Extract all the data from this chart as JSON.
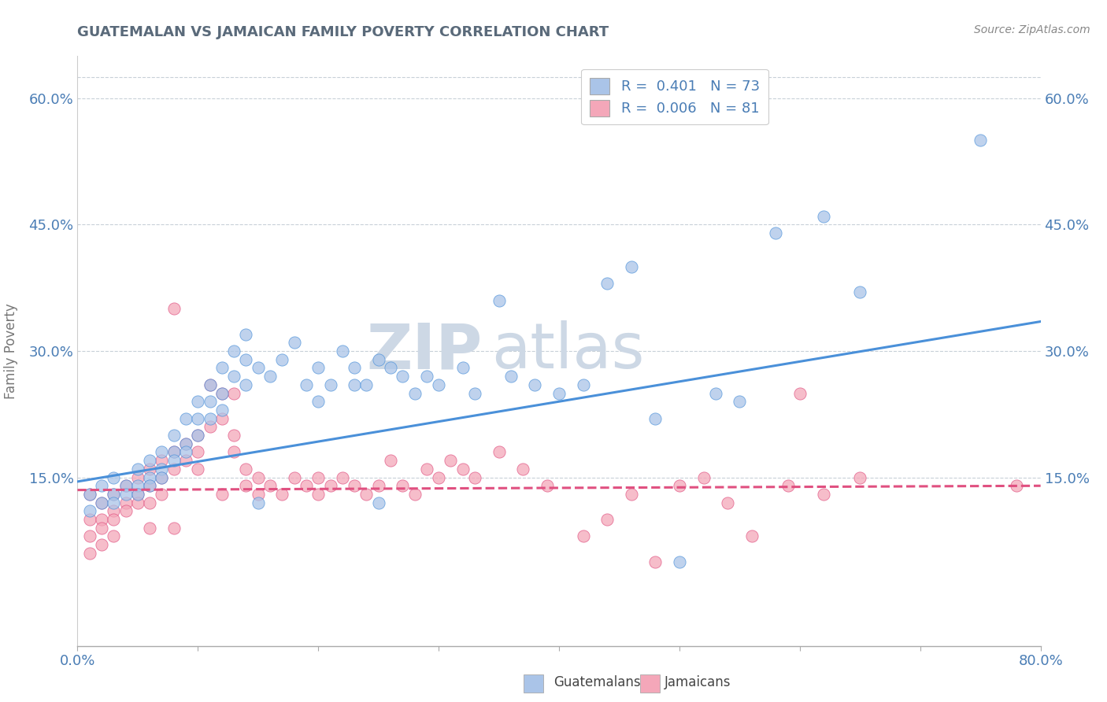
{
  "title": "GUATEMALAN VS JAMAICAN FAMILY POVERTY CORRELATION CHART",
  "source": "Source: ZipAtlas.com",
  "ylabel": "Family Poverty",
  "xmin": 0.0,
  "xmax": 0.8,
  "ymin": -0.05,
  "ymax": 0.65,
  "yticks": [
    0.0,
    0.15,
    0.3,
    0.45,
    0.6
  ],
  "ytick_labels": [
    "",
    "15.0%",
    "30.0%",
    "45.0%",
    "60.0%"
  ],
  "right_ytick_labels": [
    "",
    "15.0%",
    "30.0%",
    "45.0%",
    "60.0%"
  ],
  "guatemalan_color": "#aac4e8",
  "jamaican_color": "#f4a7b9",
  "guatemalan_line_color": "#4a90d9",
  "jamaican_line_color": "#e05080",
  "background_color": "#ffffff",
  "watermark_zip": "ZIP",
  "watermark_atlas": "atlas",
  "watermark_color": "#d0dce8",
  "guatemalans_scatter": [
    [
      0.01,
      0.13
    ],
    [
      0.01,
      0.11
    ],
    [
      0.02,
      0.14
    ],
    [
      0.02,
      0.12
    ],
    [
      0.03,
      0.15
    ],
    [
      0.03,
      0.13
    ],
    [
      0.03,
      0.12
    ],
    [
      0.04,
      0.14
    ],
    [
      0.04,
      0.13
    ],
    [
      0.05,
      0.16
    ],
    [
      0.05,
      0.14
    ],
    [
      0.05,
      0.13
    ],
    [
      0.06,
      0.15
    ],
    [
      0.06,
      0.17
    ],
    [
      0.06,
      0.14
    ],
    [
      0.07,
      0.16
    ],
    [
      0.07,
      0.18
    ],
    [
      0.07,
      0.15
    ],
    [
      0.08,
      0.2
    ],
    [
      0.08,
      0.18
    ],
    [
      0.08,
      0.17
    ],
    [
      0.09,
      0.22
    ],
    [
      0.09,
      0.19
    ],
    [
      0.09,
      0.18
    ],
    [
      0.1,
      0.24
    ],
    [
      0.1,
      0.22
    ],
    [
      0.1,
      0.2
    ],
    [
      0.11,
      0.26
    ],
    [
      0.11,
      0.24
    ],
    [
      0.11,
      0.22
    ],
    [
      0.12,
      0.28
    ],
    [
      0.12,
      0.25
    ],
    [
      0.12,
      0.23
    ],
    [
      0.13,
      0.3
    ],
    [
      0.13,
      0.27
    ],
    [
      0.14,
      0.32
    ],
    [
      0.14,
      0.29
    ],
    [
      0.14,
      0.26
    ],
    [
      0.15,
      0.28
    ],
    [
      0.15,
      0.12
    ],
    [
      0.16,
      0.27
    ],
    [
      0.17,
      0.29
    ],
    [
      0.18,
      0.31
    ],
    [
      0.19,
      0.26
    ],
    [
      0.2,
      0.24
    ],
    [
      0.2,
      0.28
    ],
    [
      0.21,
      0.26
    ],
    [
      0.22,
      0.3
    ],
    [
      0.23,
      0.28
    ],
    [
      0.23,
      0.26
    ],
    [
      0.24,
      0.26
    ],
    [
      0.25,
      0.12
    ],
    [
      0.25,
      0.29
    ],
    [
      0.26,
      0.28
    ],
    [
      0.27,
      0.27
    ],
    [
      0.28,
      0.25
    ],
    [
      0.29,
      0.27
    ],
    [
      0.3,
      0.26
    ],
    [
      0.32,
      0.28
    ],
    [
      0.33,
      0.25
    ],
    [
      0.35,
      0.36
    ],
    [
      0.36,
      0.27
    ],
    [
      0.38,
      0.26
    ],
    [
      0.4,
      0.25
    ],
    [
      0.42,
      0.26
    ],
    [
      0.44,
      0.38
    ],
    [
      0.46,
      0.4
    ],
    [
      0.48,
      0.22
    ],
    [
      0.5,
      0.05
    ],
    [
      0.53,
      0.25
    ],
    [
      0.55,
      0.24
    ],
    [
      0.58,
      0.44
    ],
    [
      0.62,
      0.46
    ],
    [
      0.65,
      0.37
    ],
    [
      0.75,
      0.55
    ]
  ],
  "jamaicans_scatter": [
    [
      0.01,
      0.13
    ],
    [
      0.01,
      0.1
    ],
    [
      0.01,
      0.08
    ],
    [
      0.01,
      0.06
    ],
    [
      0.02,
      0.12
    ],
    [
      0.02,
      0.1
    ],
    [
      0.02,
      0.09
    ],
    [
      0.02,
      0.07
    ],
    [
      0.03,
      0.13
    ],
    [
      0.03,
      0.11
    ],
    [
      0.03,
      0.1
    ],
    [
      0.03,
      0.08
    ],
    [
      0.04,
      0.14
    ],
    [
      0.04,
      0.12
    ],
    [
      0.04,
      0.11
    ],
    [
      0.05,
      0.15
    ],
    [
      0.05,
      0.13
    ],
    [
      0.05,
      0.12
    ],
    [
      0.06,
      0.16
    ],
    [
      0.06,
      0.14
    ],
    [
      0.06,
      0.12
    ],
    [
      0.06,
      0.09
    ],
    [
      0.07,
      0.17
    ],
    [
      0.07,
      0.15
    ],
    [
      0.07,
      0.13
    ],
    [
      0.08,
      0.35
    ],
    [
      0.08,
      0.18
    ],
    [
      0.08,
      0.16
    ],
    [
      0.08,
      0.09
    ],
    [
      0.09,
      0.19
    ],
    [
      0.09,
      0.17
    ],
    [
      0.1,
      0.2
    ],
    [
      0.1,
      0.18
    ],
    [
      0.1,
      0.16
    ],
    [
      0.11,
      0.26
    ],
    [
      0.11,
      0.21
    ],
    [
      0.12,
      0.25
    ],
    [
      0.12,
      0.22
    ],
    [
      0.12,
      0.13
    ],
    [
      0.13,
      0.25
    ],
    [
      0.13,
      0.2
    ],
    [
      0.13,
      0.18
    ],
    [
      0.14,
      0.16
    ],
    [
      0.14,
      0.14
    ],
    [
      0.15,
      0.15
    ],
    [
      0.15,
      0.13
    ],
    [
      0.16,
      0.14
    ],
    [
      0.17,
      0.13
    ],
    [
      0.18,
      0.15
    ],
    [
      0.19,
      0.14
    ],
    [
      0.2,
      0.15
    ],
    [
      0.2,
      0.13
    ],
    [
      0.21,
      0.14
    ],
    [
      0.22,
      0.15
    ],
    [
      0.23,
      0.14
    ],
    [
      0.24,
      0.13
    ],
    [
      0.25,
      0.14
    ],
    [
      0.26,
      0.17
    ],
    [
      0.27,
      0.14
    ],
    [
      0.28,
      0.13
    ],
    [
      0.29,
      0.16
    ],
    [
      0.3,
      0.15
    ],
    [
      0.31,
      0.17
    ],
    [
      0.32,
      0.16
    ],
    [
      0.33,
      0.15
    ],
    [
      0.35,
      0.18
    ],
    [
      0.37,
      0.16
    ],
    [
      0.39,
      0.14
    ],
    [
      0.42,
      0.08
    ],
    [
      0.44,
      0.1
    ],
    [
      0.46,
      0.13
    ],
    [
      0.48,
      0.05
    ],
    [
      0.5,
      0.14
    ],
    [
      0.52,
      0.15
    ],
    [
      0.54,
      0.12
    ],
    [
      0.56,
      0.08
    ],
    [
      0.59,
      0.14
    ],
    [
      0.6,
      0.25
    ],
    [
      0.62,
      0.13
    ],
    [
      0.65,
      0.15
    ],
    [
      0.78,
      0.14
    ]
  ],
  "guatemalan_trendline": [
    [
      0.0,
      0.145
    ],
    [
      0.8,
      0.335
    ]
  ],
  "jamaican_trendline": [
    [
      0.0,
      0.135
    ],
    [
      0.8,
      0.14
    ]
  ]
}
